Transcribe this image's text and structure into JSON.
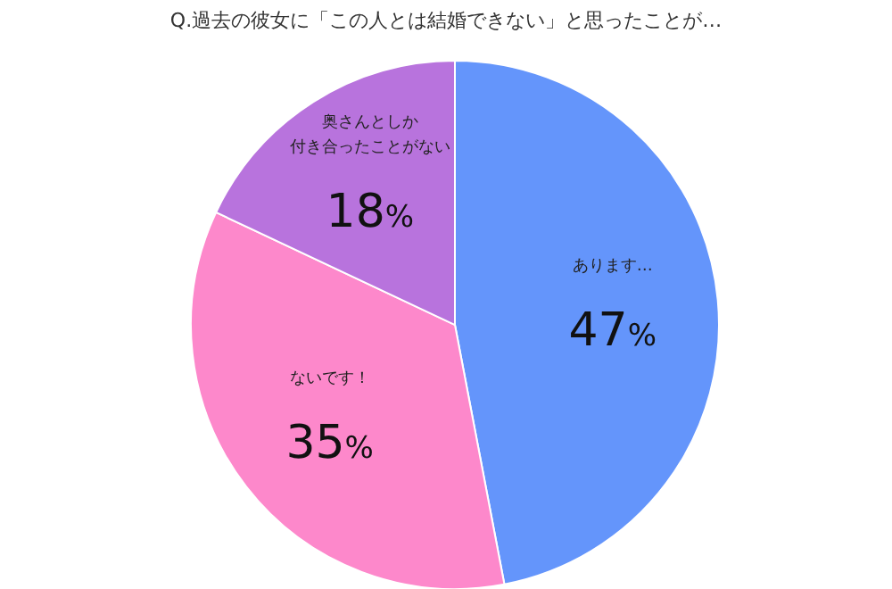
{
  "chart_data": {
    "type": "pie",
    "title": "Q.過去の彼女に「この人とは結婚できない」と思ったことが…",
    "categories": [
      "あります…",
      "ないです！",
      "奥さんとしか付き合ったことがない"
    ],
    "values": [
      47,
      35,
      18
    ],
    "colors": [
      "#6495fb",
      "#fd88cb",
      "#b873dd"
    ],
    "value_labels": [
      "47%",
      "35%",
      "18%"
    ],
    "legend": false
  }
}
